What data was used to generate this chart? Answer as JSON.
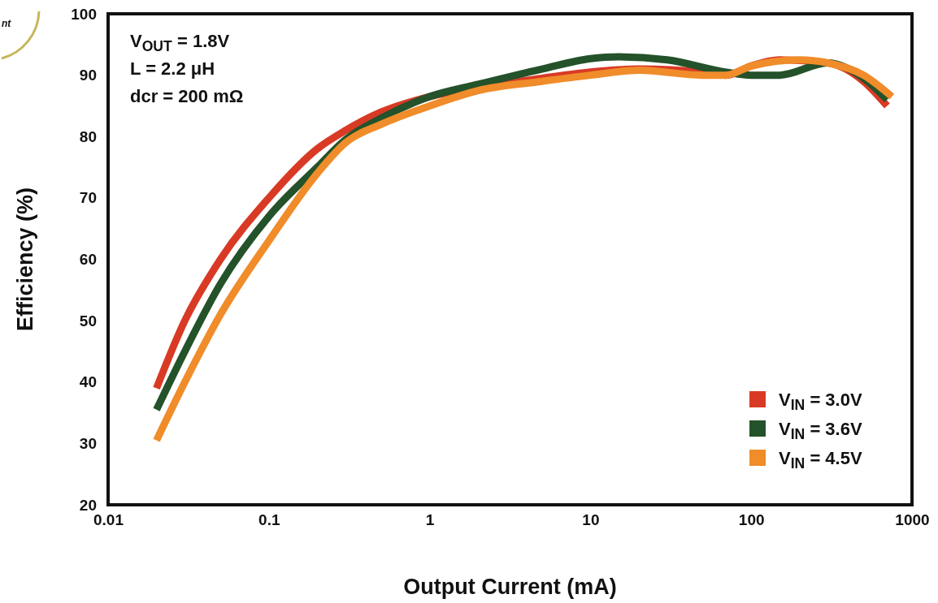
{
  "chart_data": {
    "type": "line",
    "xlabel": "Output Current (mA)",
    "ylabel": "Efficiency (%)",
    "log": "x",
    "xlim": [
      0.01,
      1000
    ],
    "xticks": [
      0.01,
      0.1,
      1,
      10,
      100,
      1000
    ],
    "ylim": [
      20,
      100
    ],
    "yticks": [
      20,
      30,
      40,
      50,
      60,
      70,
      80,
      90,
      100
    ],
    "grid": false,
    "legend": "bottom right",
    "line_style": "solid",
    "marker": "none",
    "annotations": [
      "V$_{OUT}$ = 1.8V",
      "L = 2.2 μH",
      "dcr = 200 mΩ",
      "nt"
    ],
    "series": [
      {
        "name": "V$_{IN}$ = 3.0V",
        "color": "#d93a25",
        "x": [
          0.02,
          0.03,
          0.05,
          0.1,
          0.2,
          0.3,
          0.5,
          1,
          2,
          5,
          10,
          20,
          50,
          70,
          100,
          150,
          300,
          500,
          700
        ],
        "values": [
          39,
          50,
          60,
          70,
          78,
          81,
          84,
          86.5,
          88,
          89.5,
          90.5,
          91,
          90.5,
          90,
          91.5,
          92.5,
          92,
          89,
          85
        ]
      },
      {
        "name": "V$_{IN}$ = 3.6V",
        "color": "#24522a",
        "x": [
          0.02,
          0.03,
          0.05,
          0.1,
          0.2,
          0.3,
          0.5,
          1,
          2,
          5,
          10,
          15,
          30,
          70,
          100,
          150,
          300,
          500,
          700
        ],
        "values": [
          35.5,
          45,
          56,
          67,
          75,
          79.5,
          83,
          86.5,
          88.5,
          91,
          92.7,
          93,
          92.5,
          90.5,
          90,
          90,
          92,
          89.5,
          86
        ]
      },
      {
        "name": "V$_{IN}$ = 4.5V",
        "color": "#f08c2a",
        "x": [
          0.02,
          0.03,
          0.05,
          0.1,
          0.2,
          0.3,
          0.5,
          1,
          2,
          5,
          10,
          20,
          50,
          70,
          100,
          200,
          300,
          500,
          750
        ],
        "values": [
          30.5,
          40,
          51,
          63,
          74,
          79,
          82,
          85,
          87.5,
          89,
          90,
          90.8,
          90,
          90,
          91.5,
          92.5,
          92,
          90,
          86.5
        ]
      }
    ]
  }
}
